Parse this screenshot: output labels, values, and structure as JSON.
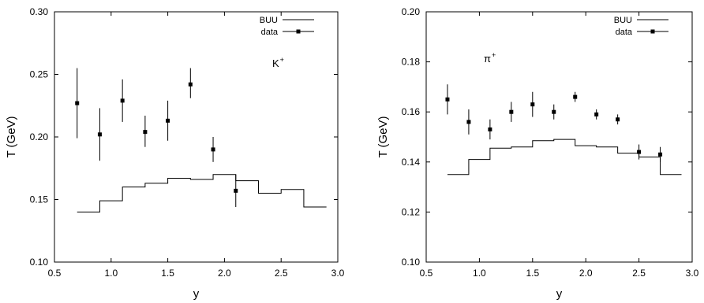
{
  "chart_data": [
    {
      "type": "scatter",
      "annotation": "K",
      "annotation_sup": "+",
      "xlabel": "y",
      "ylabel": "T (GeV)",
      "xlim": [
        0.5,
        3.0
      ],
      "ylim": [
        0.1,
        0.3
      ],
      "xticks": [
        "0.5",
        "1.0",
        "1.5",
        "2.0",
        "2.5",
        "3.0"
      ],
      "yticks": [
        "0.10",
        "0.15",
        "0.20",
        "0.25",
        "0.30"
      ],
      "legend": {
        "placement": "top-right",
        "items": [
          "BUU",
          "data"
        ]
      },
      "series": [
        {
          "name": "BUU",
          "kind": "step",
          "edges": [
            0.7,
            0.9,
            1.1,
            1.3,
            1.5,
            1.7,
            1.9,
            2.1,
            2.3,
            2.5,
            2.7,
            2.9
          ],
          "values": [
            0.14,
            0.149,
            0.16,
            0.163,
            0.167,
            0.166,
            0.17,
            0.165,
            0.155,
            0.158,
            0.144
          ]
        },
        {
          "name": "data",
          "kind": "points",
          "x": [
            0.7,
            0.9,
            1.1,
            1.3,
            1.5,
            1.7,
            1.9,
            2.1
          ],
          "y": [
            0.227,
            0.202,
            0.229,
            0.204,
            0.213,
            0.242,
            0.19,
            0.157
          ],
          "yerr_low": [
            0.199,
            0.181,
            0.212,
            0.192,
            0.197,
            0.231,
            0.18,
            0.144
          ],
          "yerr_high": [
            0.255,
            0.223,
            0.246,
            0.217,
            0.229,
            0.255,
            0.2,
            0.17
          ]
        }
      ]
    },
    {
      "type": "scatter",
      "annotation": "π",
      "annotation_sup": "+",
      "xlabel": "y",
      "ylabel": "T (GeV)",
      "xlim": [
        0.5,
        3.0
      ],
      "ylim": [
        0.1,
        0.2
      ],
      "xticks": [
        "0.5",
        "1.0",
        "1.5",
        "2.0",
        "2.5",
        "3.0"
      ],
      "yticks": [
        "0.10",
        "0.12",
        "0.14",
        "0.16",
        "0.18",
        "0.20"
      ],
      "legend": {
        "placement": "top-right",
        "items": [
          "BUU",
          "data"
        ]
      },
      "series": [
        {
          "name": "BUU",
          "kind": "step",
          "edges": [
            0.7,
            0.9,
            1.1,
            1.3,
            1.5,
            1.7,
            1.9,
            2.1,
            2.3,
            2.5,
            2.7,
            2.9
          ],
          "values": [
            0.135,
            0.141,
            0.1455,
            0.146,
            0.1485,
            0.149,
            0.1465,
            0.146,
            0.1435,
            0.142,
            0.135
          ]
        },
        {
          "name": "data",
          "kind": "points",
          "x": [
            0.7,
            0.9,
            1.1,
            1.3,
            1.5,
            1.7,
            1.9,
            2.1,
            2.3,
            2.5,
            2.7
          ],
          "y": [
            0.165,
            0.156,
            0.153,
            0.16,
            0.163,
            0.16,
            0.166,
            0.159,
            0.157,
            0.144,
            0.143
          ],
          "yerr_low": [
            0.159,
            0.151,
            0.149,
            0.156,
            0.158,
            0.157,
            0.164,
            0.157,
            0.155,
            0.141,
            0.14
          ],
          "yerr_high": [
            0.171,
            0.161,
            0.157,
            0.164,
            0.168,
            0.163,
            0.168,
            0.161,
            0.159,
            0.147,
            0.146
          ]
        }
      ]
    }
  ]
}
